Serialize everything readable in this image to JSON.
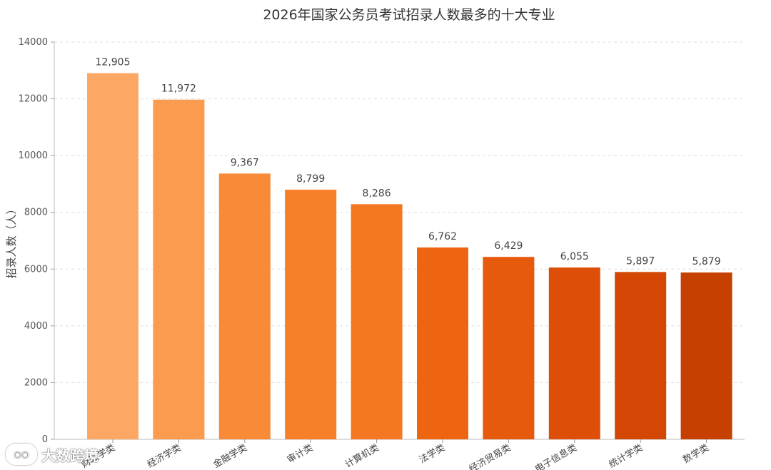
{
  "chart_data": {
    "type": "bar",
    "title": "2026年国家公务员考试招录人数最多的十大专业",
    "ylabel": "招录人数（人）",
    "xlabel": "",
    "ylim": [
      0,
      14000
    ],
    "yticks": [
      0,
      2000,
      4000,
      6000,
      8000,
      10000,
      12000,
      14000
    ],
    "categories": [
      "财政学类",
      "经济学类",
      "金融学类",
      "审计类",
      "计算机类",
      "法学类",
      "经济贸易类",
      "电子信息类",
      "统计学类",
      "数学类"
    ],
    "values": [
      12905,
      11972,
      9367,
      8799,
      8286,
      6762,
      6429,
      6055,
      5897,
      5879
    ],
    "value_labels": [
      "12,905",
      "11,972",
      "9,367",
      "8,799",
      "8,286",
      "6,762",
      "6,429",
      "6,055",
      "5,897",
      "5,879"
    ],
    "colors": [
      "#fda764",
      "#fb9b50",
      "#f98a38",
      "#f67f2a",
      "#f47722",
      "#ed6511",
      "#e65a0d",
      "#dd4f08",
      "#d44604",
      "#c64002"
    ],
    "grid": true,
    "legend": "none"
  },
  "watermark": {
    "icon": "weibo-icon",
    "icon_text": "◉◉",
    "text": "大数跨境"
  }
}
